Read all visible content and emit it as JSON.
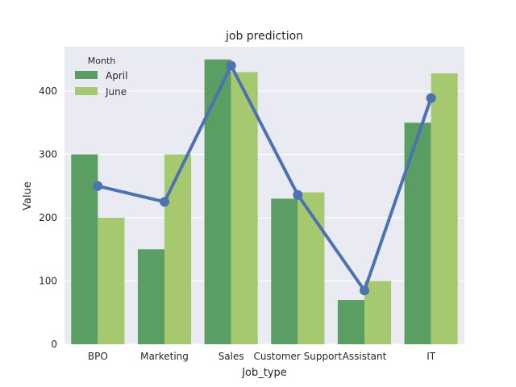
{
  "chart_data": {
    "type": "bar",
    "title": "job prediction",
    "xlabel": "Job_type",
    "ylabel": "Value",
    "categories": [
      "BPO",
      "Marketing",
      "Sales",
      "Customer Support",
      "Assistant",
      "IT"
    ],
    "ylim": [
      0,
      470
    ],
    "yticks": [
      0,
      100,
      200,
      300,
      400
    ],
    "grid": true,
    "legend": {
      "title": "Month",
      "position": "top-left"
    },
    "series": [
      {
        "name": "April",
        "type": "bar",
        "color": "#5a9e63",
        "values": [
          300,
          150,
          450,
          230,
          70,
          350
        ]
      },
      {
        "name": "June",
        "type": "bar",
        "color": "#a6c96f",
        "values": [
          200,
          300,
          430,
          240,
          100,
          428
        ]
      },
      {
        "type": "line",
        "color": "#4c72b0",
        "values": [
          250,
          225,
          440,
          236,
          85,
          389
        ]
      }
    ]
  },
  "colors": {
    "background": "#eaeaf2",
    "grid": "#ffffff",
    "text": "#262626"
  }
}
